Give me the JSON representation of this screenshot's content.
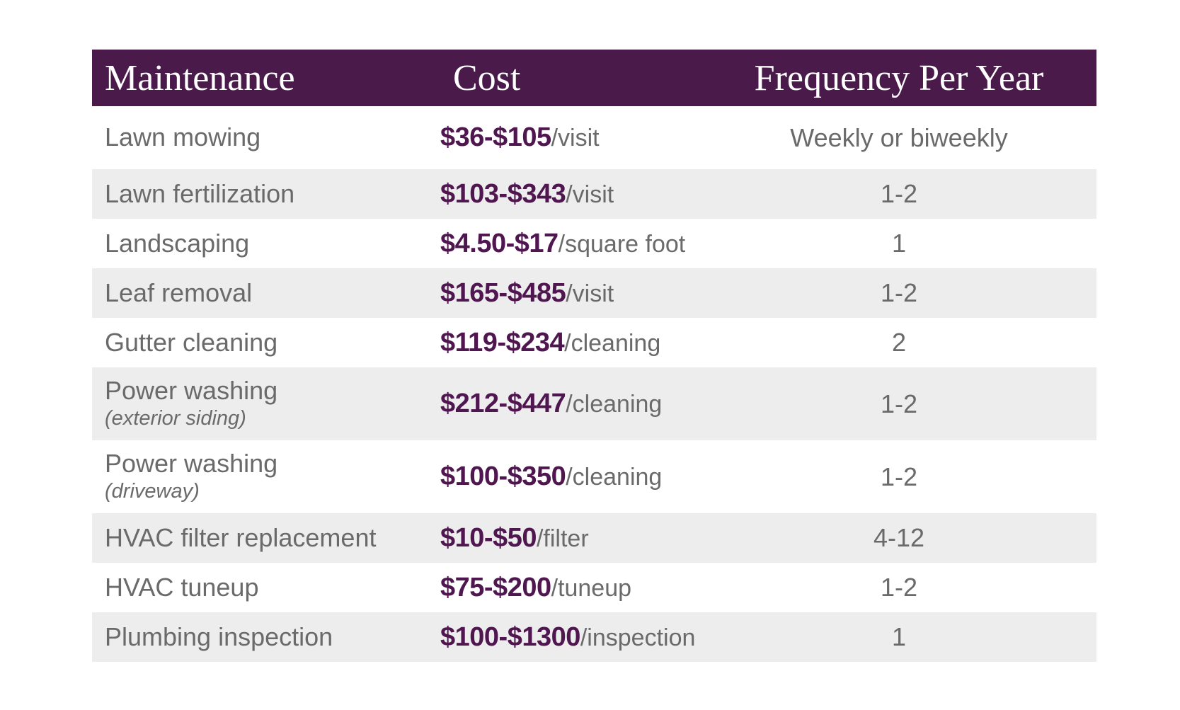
{
  "colors": {
    "header_background": "#4A1A4B",
    "header_text": "#FFFFFF",
    "stripe_background": "#EDEDED",
    "row_background": "#FFFFFF",
    "body_text": "#6A6A6A",
    "cost_accent": "#4F164F"
  },
  "table": {
    "headers": [
      "Maintenance",
      "Cost",
      "Frequency Per Year"
    ],
    "rows": [
      {
        "name": "Lawn mowing",
        "sub": "",
        "cost": "$36-$105",
        "unit": "/visit",
        "frequency": "Weekly or biweekly"
      },
      {
        "name": "Lawn fertilization",
        "sub": "",
        "cost": "$103-$343",
        "unit": "/visit",
        "frequency": "1-2"
      },
      {
        "name": "Landscaping",
        "sub": "",
        "cost": "$4.50-$17",
        "unit": "/square foot",
        "frequency": "1"
      },
      {
        "name": "Leaf removal",
        "sub": "",
        "cost": "$165-$485",
        "unit": "/visit",
        "frequency": "1-2"
      },
      {
        "name": "Gutter cleaning",
        "sub": "",
        "cost": "$119-$234",
        "unit": "/cleaning",
        "frequency": "2"
      },
      {
        "name": "Power washing",
        "sub": "(exterior siding)",
        "cost": "$212-$447",
        "unit": "/cleaning",
        "frequency": "1-2"
      },
      {
        "name": "Power washing",
        "sub": "(driveway)",
        "cost": "$100-$350",
        "unit": "/cleaning",
        "frequency": "1-2"
      },
      {
        "name": "HVAC filter replacement",
        "sub": "",
        "cost": "$10-$50",
        "unit": "/filter",
        "frequency": "4-12"
      },
      {
        "name": "HVAC tuneup",
        "sub": "",
        "cost": "$75-$200",
        "unit": "/tuneup",
        "frequency": "1-2"
      },
      {
        "name": "Plumbing inspection",
        "sub": "",
        "cost": "$100-$1300",
        "unit": "/inspection",
        "frequency": "1"
      }
    ]
  },
  "chart_data": {
    "type": "table",
    "title": "",
    "columns": [
      "Maintenance",
      "Cost",
      "Frequency Per Year"
    ],
    "rows": [
      [
        "Lawn mowing",
        "$36-$105/visit",
        "Weekly or biweekly"
      ],
      [
        "Lawn fertilization",
        "$103-$343/visit",
        "1-2"
      ],
      [
        "Landscaping",
        "$4.50-$17/square foot",
        "1"
      ],
      [
        "Leaf removal",
        "$165-$485/visit",
        "1-2"
      ],
      [
        "Gutter cleaning",
        "$119-$234/cleaning",
        "2"
      ],
      [
        "Power washing (exterior siding)",
        "$212-$447/cleaning",
        "1-2"
      ],
      [
        "Power washing (driveway)",
        "$100-$350/cleaning",
        "1-2"
      ],
      [
        "HVAC filter replacement",
        "$10-$50/filter",
        "4-12"
      ],
      [
        "HVAC tuneup",
        "$75-$200/tuneup",
        "1-2"
      ],
      [
        "Plumbing inspection",
        "$100-$1300/inspection",
        "1"
      ]
    ],
    "layout": {
      "header_style": "dark-purple bar, white serif text",
      "zebra_striping": true,
      "frequency_column_alignment": "center"
    }
  }
}
